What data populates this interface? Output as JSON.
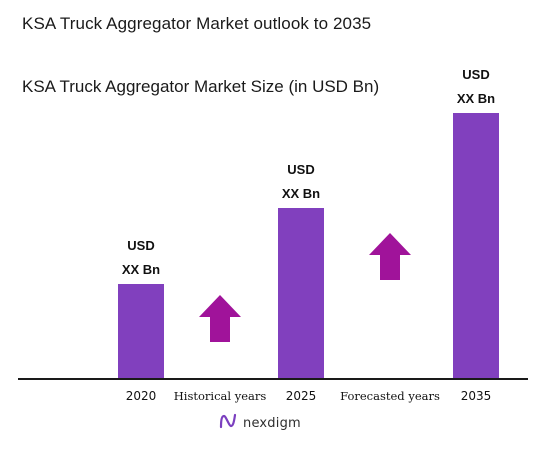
{
  "header": {
    "title": "KSA Truck Aggregator Market outlook to 2035"
  },
  "chart_data": {
    "type": "bar",
    "title": "KSA Truck Aggregator Market Size (in USD Bn)",
    "categories": [
      "2020",
      "2025",
      "2035"
    ],
    "values": [
      1,
      1.8,
      2.8
    ],
    "value_labels": [
      [
        "USD",
        "XX Bn"
      ],
      [
        "USD",
        "XX Bn"
      ],
      [
        "USD",
        "XX Bn"
      ]
    ],
    "ylim": [
      0,
      2.8
    ],
    "grid": false,
    "xlabel": "",
    "ylabel": "",
    "annotations": [
      {
        "text": "Historical years",
        "after_category": "2020",
        "arrow": "up"
      },
      {
        "text": "Forecasted years",
        "after_category": "2025",
        "arrow": "up"
      }
    ],
    "colors": {
      "bar": "#8140BE",
      "arrow": "#A0139A",
      "axis": "#1a1a1a"
    }
  },
  "branding": {
    "logo_text": "nexdigm",
    "logo_icon": "nexdigm-n-icon",
    "logo_color": "#7B3FBF"
  }
}
